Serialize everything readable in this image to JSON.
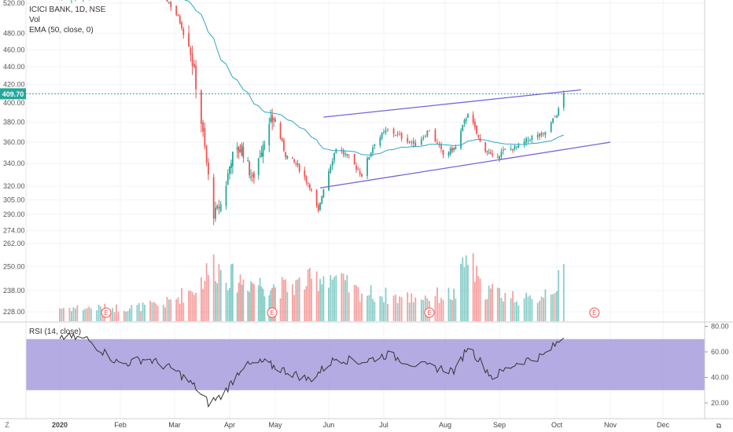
{
  "header": {
    "symbol_line": "ICICI BANK, 1D, NSE",
    "vol_label": "Vol",
    "ema_label": "EMA (50, close, 0)"
  },
  "rsi_panel": {
    "label": "RSI (14, close)",
    "band_color": "#9b8fd8"
  },
  "footer": {
    "timezone_button": "Z",
    "logo_mark": "⧉"
  },
  "colors": {
    "up": "#26a69a",
    "down": "#ef5350",
    "ema": "#2fa6c9",
    "channel": "#7b61d6",
    "price_label_bg": "#26a69a"
  },
  "chart_data": [
    {
      "type": "candlestick",
      "title": "ICICI BANK, 1D, NSE",
      "ylim": [
        222,
        540
      ],
      "y_ticks": [
        "228.00",
        "238.00",
        "250.00",
        "262.00",
        "274.00",
        "290.00",
        "305.00",
        "320.00",
        "340.00",
        "360.00",
        "380.00",
        "400.00",
        "420.00",
        "440.00",
        "460.00",
        "480.00",
        "520.00"
      ],
      "x_ticks": [
        "2020",
        "Feb",
        "Mar",
        "Apr",
        "May",
        "Jun",
        "Jul",
        "Aug",
        "Sep",
        "Oct",
        "Nov",
        "Dec"
      ],
      "last_price": "409.70",
      "earnings_markers": [
        "E",
        "E",
        "E",
        "E"
      ],
      "price_anchors": [
        [
          "2020-01-01",
          529
        ],
        [
          "2020-01-15",
          530
        ],
        [
          "2020-01-25",
          538
        ],
        [
          "2020-02-05",
          536
        ],
        [
          "2020-02-15",
          540
        ],
        [
          "2020-02-24",
          532
        ],
        [
          "2020-03-02",
          505
        ],
        [
          "2020-03-09",
          470
        ],
        [
          "2020-03-13",
          420
        ],
        [
          "2020-03-19",
          340
        ],
        [
          "2020-03-23",
          290
        ],
        [
          "2020-03-27",
          300
        ],
        [
          "2020-04-02",
          345
        ],
        [
          "2020-04-09",
          355
        ],
        [
          "2020-04-16",
          325
        ],
        [
          "2020-04-23",
          360
        ],
        [
          "2020-04-30",
          385
        ],
        [
          "2020-05-07",
          348
        ],
        [
          "2020-05-14",
          338
        ],
        [
          "2020-05-21",
          320
        ],
        [
          "2020-05-26",
          292
        ],
        [
          "2020-05-29",
          318
        ],
        [
          "2020-06-05",
          355
        ],
        [
          "2020-06-12",
          345
        ],
        [
          "2020-06-19",
          330
        ],
        [
          "2020-06-26",
          360
        ],
        [
          "2020-07-03",
          372
        ],
        [
          "2020-07-10",
          365
        ],
        [
          "2020-07-17",
          358
        ],
        [
          "2020-07-24",
          372
        ],
        [
          "2020-07-31",
          348
        ],
        [
          "2020-08-07",
          355
        ],
        [
          "2020-08-14",
          390
        ],
        [
          "2020-08-21",
          360
        ],
        [
          "2020-08-28",
          345
        ],
        [
          "2020-09-04",
          352
        ],
        [
          "2020-09-11",
          356
        ],
        [
          "2020-09-18",
          365
        ],
        [
          "2020-09-24",
          367
        ],
        [
          "2020-09-29",
          382
        ],
        [
          "2020-10-02",
          392
        ],
        [
          "2020-10-05",
          409.7
        ]
      ],
      "volume_anchors": [
        [
          "2020-01-01",
          0.2
        ],
        [
          "2020-02-05",
          0.2
        ],
        [
          "2020-02-24",
          0.25
        ],
        [
          "2020-03-13",
          0.5
        ],
        [
          "2020-03-23",
          0.85
        ],
        [
          "2020-04-02",
          0.65
        ],
        [
          "2020-04-23",
          0.55
        ],
        [
          "2020-05-07",
          0.5
        ],
        [
          "2020-05-21",
          0.6
        ],
        [
          "2020-06-01",
          0.7
        ],
        [
          "2020-06-15",
          0.45
        ],
        [
          "2020-07-10",
          0.35
        ],
        [
          "2020-08-07",
          0.4
        ],
        [
          "2020-08-14",
          1.0
        ],
        [
          "2020-08-21",
          0.5
        ],
        [
          "2020-09-18",
          0.3
        ],
        [
          "2020-10-05",
          0.65
        ]
      ],
      "channel_upper": [
        [
          "2020-05-29",
          385
        ],
        [
          "2020-10-15",
          414
        ]
      ],
      "channel_lower": [
        [
          "2020-05-27",
          318
        ],
        [
          "2020-11-01",
          360
        ]
      ]
    },
    {
      "type": "line",
      "name": "RSI (14, close)",
      "ylim": [
        10,
        82
      ],
      "y_ticks": [
        "80.00",
        "60.00",
        "40.00",
        "20.00"
      ],
      "band": [
        30,
        70
      ],
      "rsi_anchors": [
        [
          "2020-01-01",
          72
        ],
        [
          "2020-01-15",
          70
        ],
        [
          "2020-02-01",
          50
        ],
        [
          "2020-02-15",
          55
        ],
        [
          "2020-03-02",
          45
        ],
        [
          "2020-03-13",
          32
        ],
        [
          "2020-03-20",
          20
        ],
        [
          "2020-03-27",
          25
        ],
        [
          "2020-04-09",
          48
        ],
        [
          "2020-04-23",
          52
        ],
        [
          "2020-05-07",
          45
        ],
        [
          "2020-05-21",
          38
        ],
        [
          "2020-06-05",
          55
        ],
        [
          "2020-06-19",
          52
        ],
        [
          "2020-07-03",
          58
        ],
        [
          "2020-07-17",
          50
        ],
        [
          "2020-08-07",
          45
        ],
        [
          "2020-08-14",
          65
        ],
        [
          "2020-08-28",
          40
        ],
        [
          "2020-09-11",
          52
        ],
        [
          "2020-09-24",
          57
        ],
        [
          "2020-10-02",
          68
        ],
        [
          "2020-10-05",
          72
        ]
      ]
    }
  ]
}
